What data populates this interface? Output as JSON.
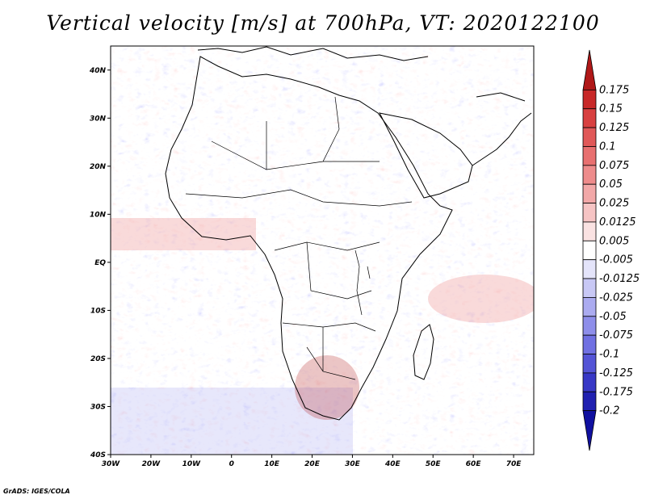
{
  "title": "Vertical velocity [m/s] at 700hPa, VT: 2020122100",
  "credit": "GrADS: IGES/COLA",
  "colors": {
    "positive_strong": "#b01818",
    "positive_mid": "#e86a6a",
    "positive_weak": "#f5c2c2",
    "neutral": "#ffffff",
    "negative_weak": "#c8c8f5",
    "negative_mid": "#7878e8",
    "negative_strong": "#1e1eb0",
    "coastline": "#000000"
  },
  "chart_data": {
    "type": "heatmap",
    "field": "vertical velocity",
    "units": "m/s",
    "level": "700hPa",
    "valid_time": "2020122100",
    "lon_range": [
      -30,
      75
    ],
    "lat_range": [
      -40,
      45
    ],
    "x_ticks": [
      "30W",
      "20W",
      "10W",
      "0",
      "10E",
      "20E",
      "30E",
      "40E",
      "50E",
      "60E",
      "70E"
    ],
    "x_tick_values": [
      -30,
      -20,
      -10,
      0,
      10,
      20,
      30,
      40,
      50,
      60,
      70
    ],
    "y_ticks": [
      "40N",
      "30N",
      "20N",
      "10N",
      "EQ",
      "10S",
      "20S",
      "30S",
      "40S"
    ],
    "y_tick_values": [
      40,
      30,
      20,
      10,
      0,
      -10,
      -20,
      -30,
      -40
    ],
    "colorbar": {
      "labels": [
        "0.175",
        "0.15",
        "0.125",
        "0.1",
        "0.075",
        "0.05",
        "0.025",
        "0.0125",
        "0.005",
        "-0.005",
        "-0.0125",
        "-0.025",
        "-0.05",
        "-0.075",
        "-0.1",
        "-0.125",
        "-0.175",
        "-0.2"
      ],
      "colors": [
        "#b01818",
        "#c82828",
        "#d84040",
        "#e05858",
        "#e87070",
        "#ee8c8c",
        "#f2a8a8",
        "#f6c4c4",
        "#fae2e2",
        "#ffffff",
        "#e4e4fa",
        "#c8c8f5",
        "#ababf0",
        "#8e8eea",
        "#7070e2",
        "#5454d6",
        "#3838c6",
        "#2020b0",
        "#1010a0"
      ]
    }
  }
}
